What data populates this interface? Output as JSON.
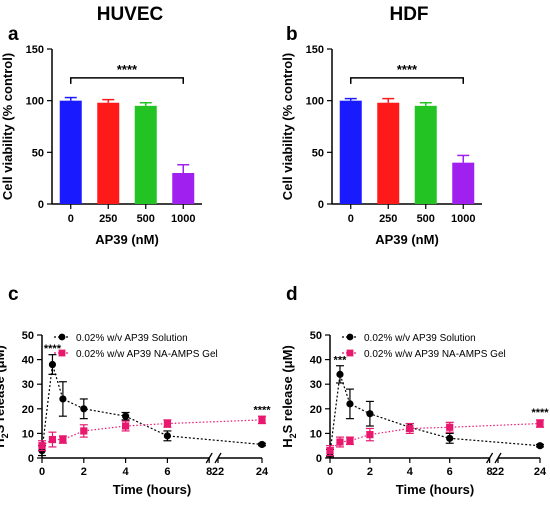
{
  "figure": {
    "panels": [
      {
        "letter": "a",
        "title": "HUVEC"
      },
      {
        "letter": "b",
        "title": "HDF"
      },
      {
        "letter": "c",
        "title": ""
      },
      {
        "letter": "d",
        "title": ""
      }
    ]
  },
  "chart_data": [
    {
      "type": "bar",
      "panel": "a",
      "title": "HUVEC",
      "xlabel": "AP39 (nM)",
      "ylabel": "Cell viability (% control)",
      "ylim": [
        0,
        150
      ],
      "yticks": [
        0,
        50,
        100,
        150
      ],
      "categories": [
        "0",
        "250",
        "500",
        "1000"
      ],
      "values": [
        100,
        98,
        95,
        30
      ],
      "errors": [
        3,
        3,
        3,
        8
      ],
      "colors": [
        "#1a1aff",
        "#ff1a1a",
        "#22c322",
        "#a020f0"
      ],
      "significance": {
        "label": "****",
        "from": 0,
        "to": 3,
        "y": 122
      }
    },
    {
      "type": "bar",
      "panel": "b",
      "title": "HDF",
      "xlabel": "AP39 (nM)",
      "ylabel": "Cell viability (% control)",
      "ylim": [
        0,
        150
      ],
      "yticks": [
        0,
        50,
        100,
        150
      ],
      "categories": [
        "0",
        "250",
        "500",
        "1000"
      ],
      "values": [
        100,
        98,
        95,
        40
      ],
      "errors": [
        2,
        4,
        3,
        7
      ],
      "colors": [
        "#1a1aff",
        "#ff1a1a",
        "#22c322",
        "#a020f0"
      ],
      "significance": {
        "label": "****",
        "from": 0,
        "to": 3,
        "y": 122
      }
    },
    {
      "type": "line",
      "panel": "c",
      "xlabel": "Time (hours)",
      "ylabel_main": "H",
      "ylabel_sub": "2",
      "ylabel_rest": "S release (μM)",
      "ylim": [
        0,
        50
      ],
      "yticks": [
        0,
        10,
        20,
        30,
        40,
        50
      ],
      "xticks": [
        0,
        2,
        4,
        6,
        8,
        22,
        24
      ],
      "xbreak": [
        8,
        22
      ],
      "legend": [
        {
          "label": "0.02% w/v AP39 Solution"
        },
        {
          "label": "0.02% w/w AP39 NA-AMPS Gel"
        }
      ],
      "series": [
        {
          "color": "#000000",
          "marker": "circle",
          "x": [
            0,
            0.5,
            1,
            2,
            4,
            6,
            24
          ],
          "y": [
            3,
            38,
            24,
            20,
            17,
            9,
            5.5
          ],
          "err": [
            2,
            4,
            7,
            4,
            1.5,
            2,
            0.5
          ]
        },
        {
          "color": "#e8186e",
          "marker": "square",
          "x": [
            0,
            0.5,
            1,
            2,
            4,
            6,
            24
          ],
          "y": [
            5,
            7.5,
            7.5,
            11,
            13,
            14,
            15.5
          ],
          "err": [
            2,
            3,
            1.5,
            2.5,
            2,
            1.5,
            1.5
          ]
        }
      ],
      "annotations": [
        {
          "label": "****",
          "x": 0.5,
          "y": 43
        },
        {
          "label": "****",
          "x": 24,
          "y": 18
        }
      ]
    },
    {
      "type": "line",
      "panel": "d",
      "xlabel": "Time (hours)",
      "ylabel_main": "H",
      "ylabel_sub": "2",
      "ylabel_rest": "S release (μM)",
      "ylim": [
        0,
        50
      ],
      "yticks": [
        0,
        10,
        20,
        30,
        40,
        50
      ],
      "xticks": [
        0,
        2,
        4,
        6,
        8,
        22,
        24
      ],
      "xbreak": [
        8,
        22
      ],
      "legend": [
        {
          "label": "0.02% w/v AP39 Solution"
        },
        {
          "label": "0.02% w/w AP39 NA-AMPS Gel"
        }
      ],
      "series": [
        {
          "color": "#000000",
          "marker": "circle",
          "x": [
            0,
            0.5,
            1,
            2,
            4,
            6,
            24
          ],
          "y": [
            2,
            34,
            22,
            18,
            12.5,
            8,
            5
          ],
          "err": [
            1.5,
            3.5,
            6,
            5,
            1.5,
            2,
            0.5
          ]
        },
        {
          "color": "#e8186e",
          "marker": "square",
          "x": [
            0,
            0.5,
            1,
            2,
            4,
            6,
            24
          ],
          "y": [
            3,
            6.5,
            7,
            9.5,
            12,
            12.5,
            14
          ],
          "err": [
            2,
            2,
            1.5,
            2.5,
            2,
            2,
            1.5
          ]
        }
      ],
      "annotations": [
        {
          "label": "***",
          "x": 0.5,
          "y": 38.5
        },
        {
          "label": "****",
          "x": 24,
          "y": 17
        }
      ]
    }
  ]
}
